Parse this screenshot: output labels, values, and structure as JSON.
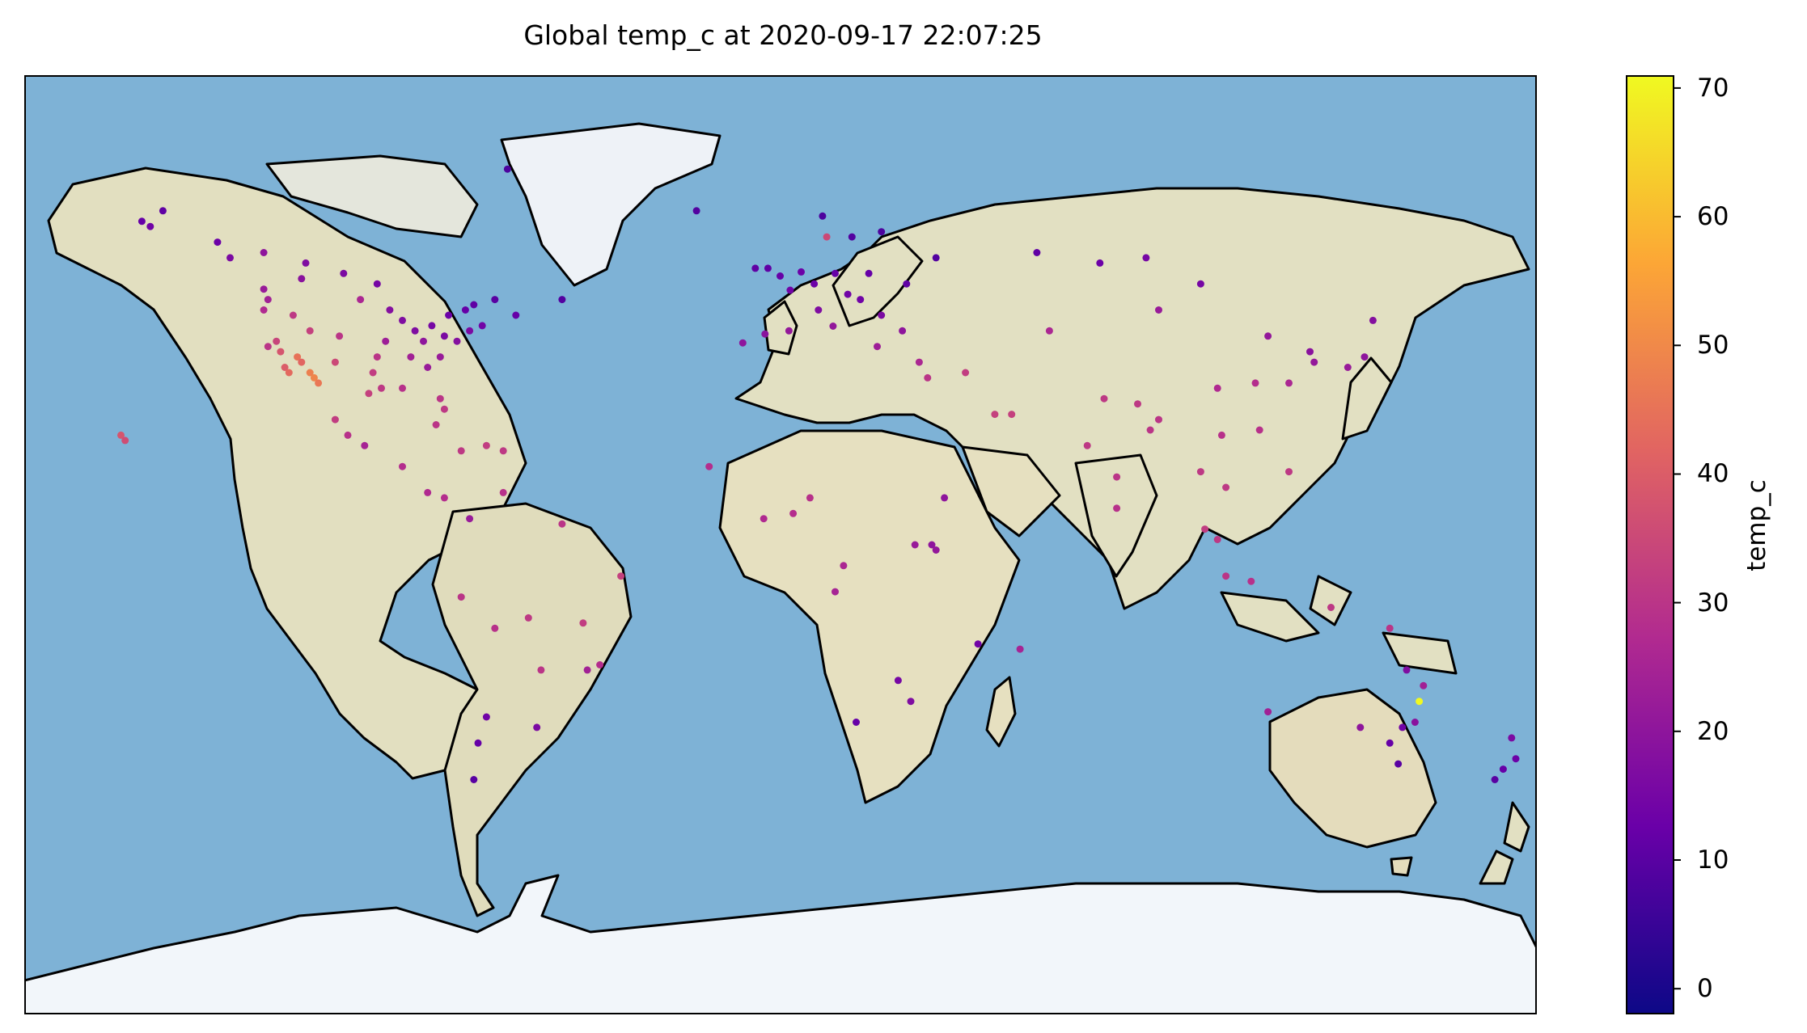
{
  "chart_data": {
    "type": "scatter",
    "title": "Global temp_c at 2020-09-17 22:07:25",
    "projection": "plate-carree",
    "xlim": [
      -180,
      180
    ],
    "ylim": [
      -90,
      90
    ],
    "colormap": "plasma",
    "colorbar": {
      "label": "temp_c",
      "range": [
        -2,
        71
      ],
      "ticks": [
        0,
        10,
        20,
        30,
        40,
        50,
        60,
        70
      ],
      "colors": [
        "#0d0887",
        "#6a00a8",
        "#b12a90",
        "#e16462",
        "#fca636",
        "#f0f921"
      ]
    },
    "colors": {
      "ocean": "#7eb2d6",
      "land": "#e6e2c6",
      "ice": "#f2f6fa",
      "coast": "#000000"
    },
    "points": [
      [
        -152,
        62,
        12
      ],
      [
        -150,
        61,
        14
      ],
      [
        -147,
        64,
        11
      ],
      [
        -134,
        58,
        13
      ],
      [
        -131,
        55,
        16
      ],
      [
        -123,
        49,
        22
      ],
      [
        -122,
        47,
        24
      ],
      [
        -123,
        45,
        27
      ],
      [
        -122,
        38,
        30
      ],
      [
        -118,
        34,
        40
      ],
      [
        -117,
        33,
        43
      ],
      [
        -115,
        36,
        45
      ],
      [
        -112,
        33,
        48
      ],
      [
        -111,
        32,
        49
      ],
      [
        -110,
        31,
        46
      ],
      [
        -106,
        35,
        35
      ],
      [
        -105,
        40,
        30
      ],
      [
        -112,
        41,
        33
      ],
      [
        -116,
        44,
        31
      ],
      [
        -120,
        39,
        34
      ],
      [
        -119,
        37,
        38
      ],
      [
        -114,
        35,
        42
      ],
      [
        -100,
        47,
        26
      ],
      [
        -97,
        33,
        32
      ],
      [
        -95,
        30,
        31
      ],
      [
        -98,
        29,
        33
      ],
      [
        -96,
        36,
        30
      ],
      [
        -90,
        30,
        29
      ],
      [
        -84,
        34,
        22
      ],
      [
        -81,
        28,
        30
      ],
      [
        -80,
        26,
        31
      ],
      [
        -87,
        41,
        17
      ],
      [
        -83,
        42,
        15
      ],
      [
        -80,
        40,
        16
      ],
      [
        -77,
        39,
        18
      ],
      [
        -74,
        41,
        16
      ],
      [
        -71,
        42,
        14
      ],
      [
        -75,
        45,
        12
      ],
      [
        -79,
        44,
        13
      ],
      [
        -73,
        46,
        11
      ],
      [
        -85,
        39,
        20
      ],
      [
        -88,
        36,
        24
      ],
      [
        -93,
        45,
        18
      ],
      [
        -90,
        43,
        17
      ],
      [
        -94,
        39,
        23
      ],
      [
        -81,
        36,
        22
      ],
      [
        -82,
        23,
        30
      ],
      [
        -76,
        18,
        31
      ],
      [
        -70,
        19,
        32
      ],
      [
        -66,
        18,
        31
      ],
      [
        -99,
        19,
        25
      ],
      [
        -103,
        21,
        29
      ],
      [
        -106,
        24,
        32
      ],
      [
        -90,
        15,
        28
      ],
      [
        -84,
        10,
        27
      ],
      [
        -80,
        9,
        28
      ],
      [
        -157,
        21,
        38
      ],
      [
        -156,
        20,
        36
      ],
      [
        -74,
        5,
        22
      ],
      [
        -76,
        -10,
        30
      ],
      [
        -68,
        -16,
        29
      ],
      [
        -60,
        -14,
        31
      ],
      [
        -57,
        -24,
        30
      ],
      [
        -47,
        -15,
        32
      ],
      [
        -38,
        -6,
        33
      ],
      [
        -43,
        -23,
        28
      ],
      [
        -46,
        -24,
        24
      ],
      [
        -58,
        -35,
        16
      ],
      [
        -70,
        -33,
        14
      ],
      [
        -72,
        -38,
        12
      ],
      [
        -73,
        -45,
        10
      ],
      [
        -52,
        4,
        30
      ],
      [
        -66,
        10,
        29
      ],
      [
        -0.1,
        51.5,
        12
      ],
      [
        2.3,
        48.8,
        14
      ],
      [
        -3,
        53,
        11
      ],
      [
        -6,
        53,
        11
      ],
      [
        4.9,
        52.3,
        13
      ],
      [
        8,
        50,
        13
      ],
      [
        13,
        52,
        12
      ],
      [
        17,
        59,
        9
      ],
      [
        11,
        59,
        35
      ],
      [
        24,
        60,
        8
      ],
      [
        10,
        63,
        8
      ],
      [
        -9,
        38.7,
        20
      ],
      [
        -3.7,
        40.4,
        19
      ],
      [
        2,
        41,
        21
      ],
      [
        12.5,
        41.9,
        21
      ],
      [
        9,
        45,
        17
      ],
      [
        16,
        48,
        14
      ],
      [
        19,
        47,
        14
      ],
      [
        21,
        52,
        12
      ],
      [
        24,
        44,
        16
      ],
      [
        23,
        38,
        23
      ],
      [
        29,
        41,
        20
      ],
      [
        30,
        50,
        11
      ],
      [
        37,
        55,
        9
      ],
      [
        33,
        35,
        26
      ],
      [
        35,
        32,
        30
      ],
      [
        44,
        33,
        32
      ],
      [
        51,
        25,
        33
      ],
      [
        55,
        25,
        33
      ],
      [
        36,
        0,
        20
      ],
      [
        37,
        -1,
        21
      ],
      [
        32,
        0,
        22
      ],
      [
        39,
        9,
        20
      ],
      [
        28,
        -26,
        15
      ],
      [
        18,
        -34,
        12
      ],
      [
        31,
        -30,
        17
      ],
      [
        47,
        -19,
        14
      ],
      [
        -17,
        15,
        28
      ],
      [
        -4,
        5,
        27
      ],
      [
        3,
        6,
        28
      ],
      [
        7,
        9,
        29
      ],
      [
        15,
        -4,
        26
      ],
      [
        13,
        -9,
        25
      ],
      [
        57,
        -20,
        25
      ],
      [
        73,
        19,
        31
      ],
      [
        77,
        28,
        31
      ],
      [
        80,
        13,
        30
      ],
      [
        88,
        22,
        30
      ],
      [
        85,
        27,
        31
      ],
      [
        90,
        24,
        30
      ],
      [
        80,
        7,
        29
      ],
      [
        100,
        14,
        31
      ],
      [
        106,
        11,
        31
      ],
      [
        105,
        21,
        29
      ],
      [
        101,
        3,
        32
      ],
      [
        104,
        1,
        31
      ],
      [
        106,
        -6,
        30
      ],
      [
        112,
        -7,
        29
      ],
      [
        114,
        22,
        29
      ],
      [
        121,
        31,
        26
      ],
      [
        116,
        40,
        21
      ],
      [
        121,
        14,
        31
      ],
      [
        126,
        37,
        19
      ],
      [
        127,
        35,
        21
      ],
      [
        139,
        36,
        20
      ],
      [
        135,
        34,
        22
      ],
      [
        141,
        43,
        18
      ],
      [
        151,
        -34,
        19
      ],
      [
        153,
        -27,
        24
      ],
      [
        148,
        -35,
        14
      ],
      [
        145,
        -38,
        12
      ],
      [
        138,
        -35,
        20
      ],
      [
        147,
        -42,
        10
      ],
      [
        152,
        -30,
        71
      ],
      [
        149,
        -24,
        17
      ],
      [
        116,
        -32,
        24
      ],
      [
        131,
        -12,
        31
      ],
      [
        145,
        -16,
        30
      ],
      [
        174,
        -37,
        16
      ],
      [
        175,
        -41,
        13
      ],
      [
        172,
        -43,
        12
      ],
      [
        170,
        -45,
        10
      ],
      [
        -68,
        47,
        10
      ],
      [
        -63,
        44,
        12
      ],
      [
        -52,
        47,
        9
      ],
      [
        -96,
        50,
        15
      ],
      [
        -114,
        51,
        19
      ],
      [
        -104,
        52,
        16
      ],
      [
        -113,
        54,
        17
      ],
      [
        -123,
        56,
        20
      ],
      [
        -65,
        72,
        8
      ],
      [
        -20,
        64,
        9
      ],
      [
        90,
        45,
        22
      ],
      [
        64,
        41,
        26
      ],
      [
        61,
        56,
        11
      ],
      [
        76,
        54,
        13
      ],
      [
        87,
        55,
        15
      ],
      [
        100,
        50,
        15
      ],
      [
        113,
        31,
        28
      ],
      [
        104,
        30,
        27
      ]
    ]
  }
}
